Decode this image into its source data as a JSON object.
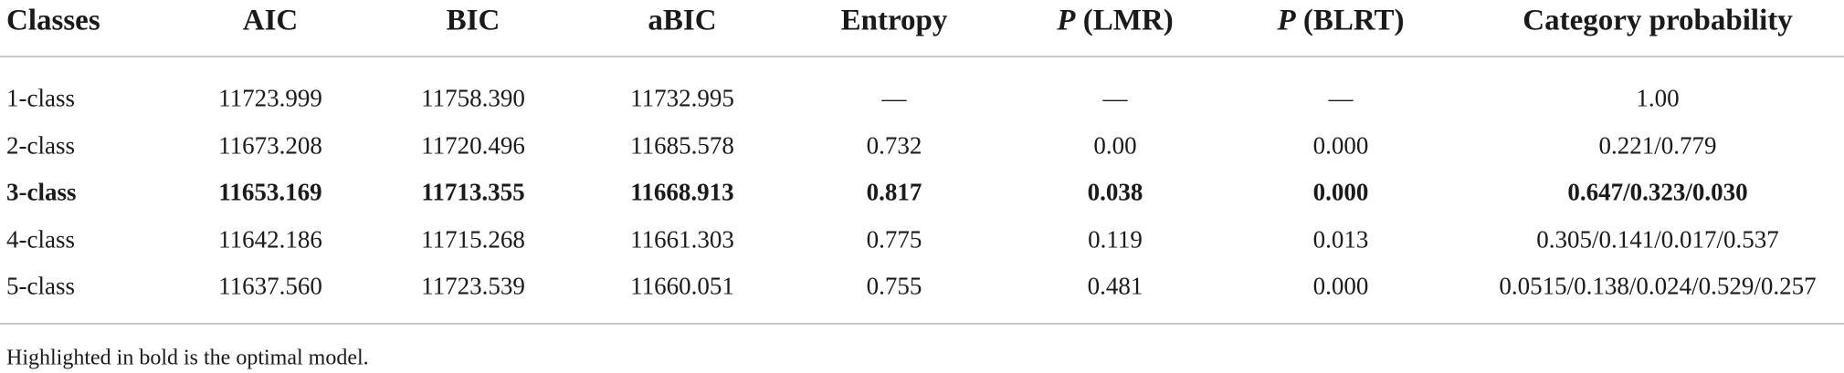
{
  "table": {
    "headers": [
      {
        "text": "Classes"
      },
      {
        "text": "AIC"
      },
      {
        "text": "BIC"
      },
      {
        "text": "aBIC"
      },
      {
        "text": "Entropy"
      },
      {
        "prefix": "P",
        "text": "(LMR)"
      },
      {
        "prefix": "P",
        "text": "(BLRT)"
      },
      {
        "text": "Category probability"
      }
    ],
    "rows": [
      [
        "1-class",
        "11723.999",
        "11758.390",
        "11732.995",
        "—",
        "—",
        "—",
        "1.00"
      ],
      [
        "2-class",
        "11673.208",
        "11720.496",
        "11685.578",
        "0.732",
        "0.00",
        "0.000",
        "0.221/0.779"
      ],
      [
        "3-class",
        "11653.169",
        "11713.355",
        "11668.913",
        "0.817",
        "0.038",
        "0.000",
        "0.647/0.323/0.030"
      ],
      [
        "4-class",
        "11642.186",
        "11715.268",
        "11661.303",
        "0.775",
        "0.119",
        "0.013",
        "0.305/0.141/0.017/0.537"
      ],
      [
        "5-class",
        "11637.560",
        "11723.539",
        "11660.051",
        "0.755",
        "0.481",
        "0.000",
        "0.0515/0.138/0.024/0.529/0.257"
      ]
    ],
    "bold_row": 2,
    "footnote": "Highlighted in bold is the optimal model."
  }
}
